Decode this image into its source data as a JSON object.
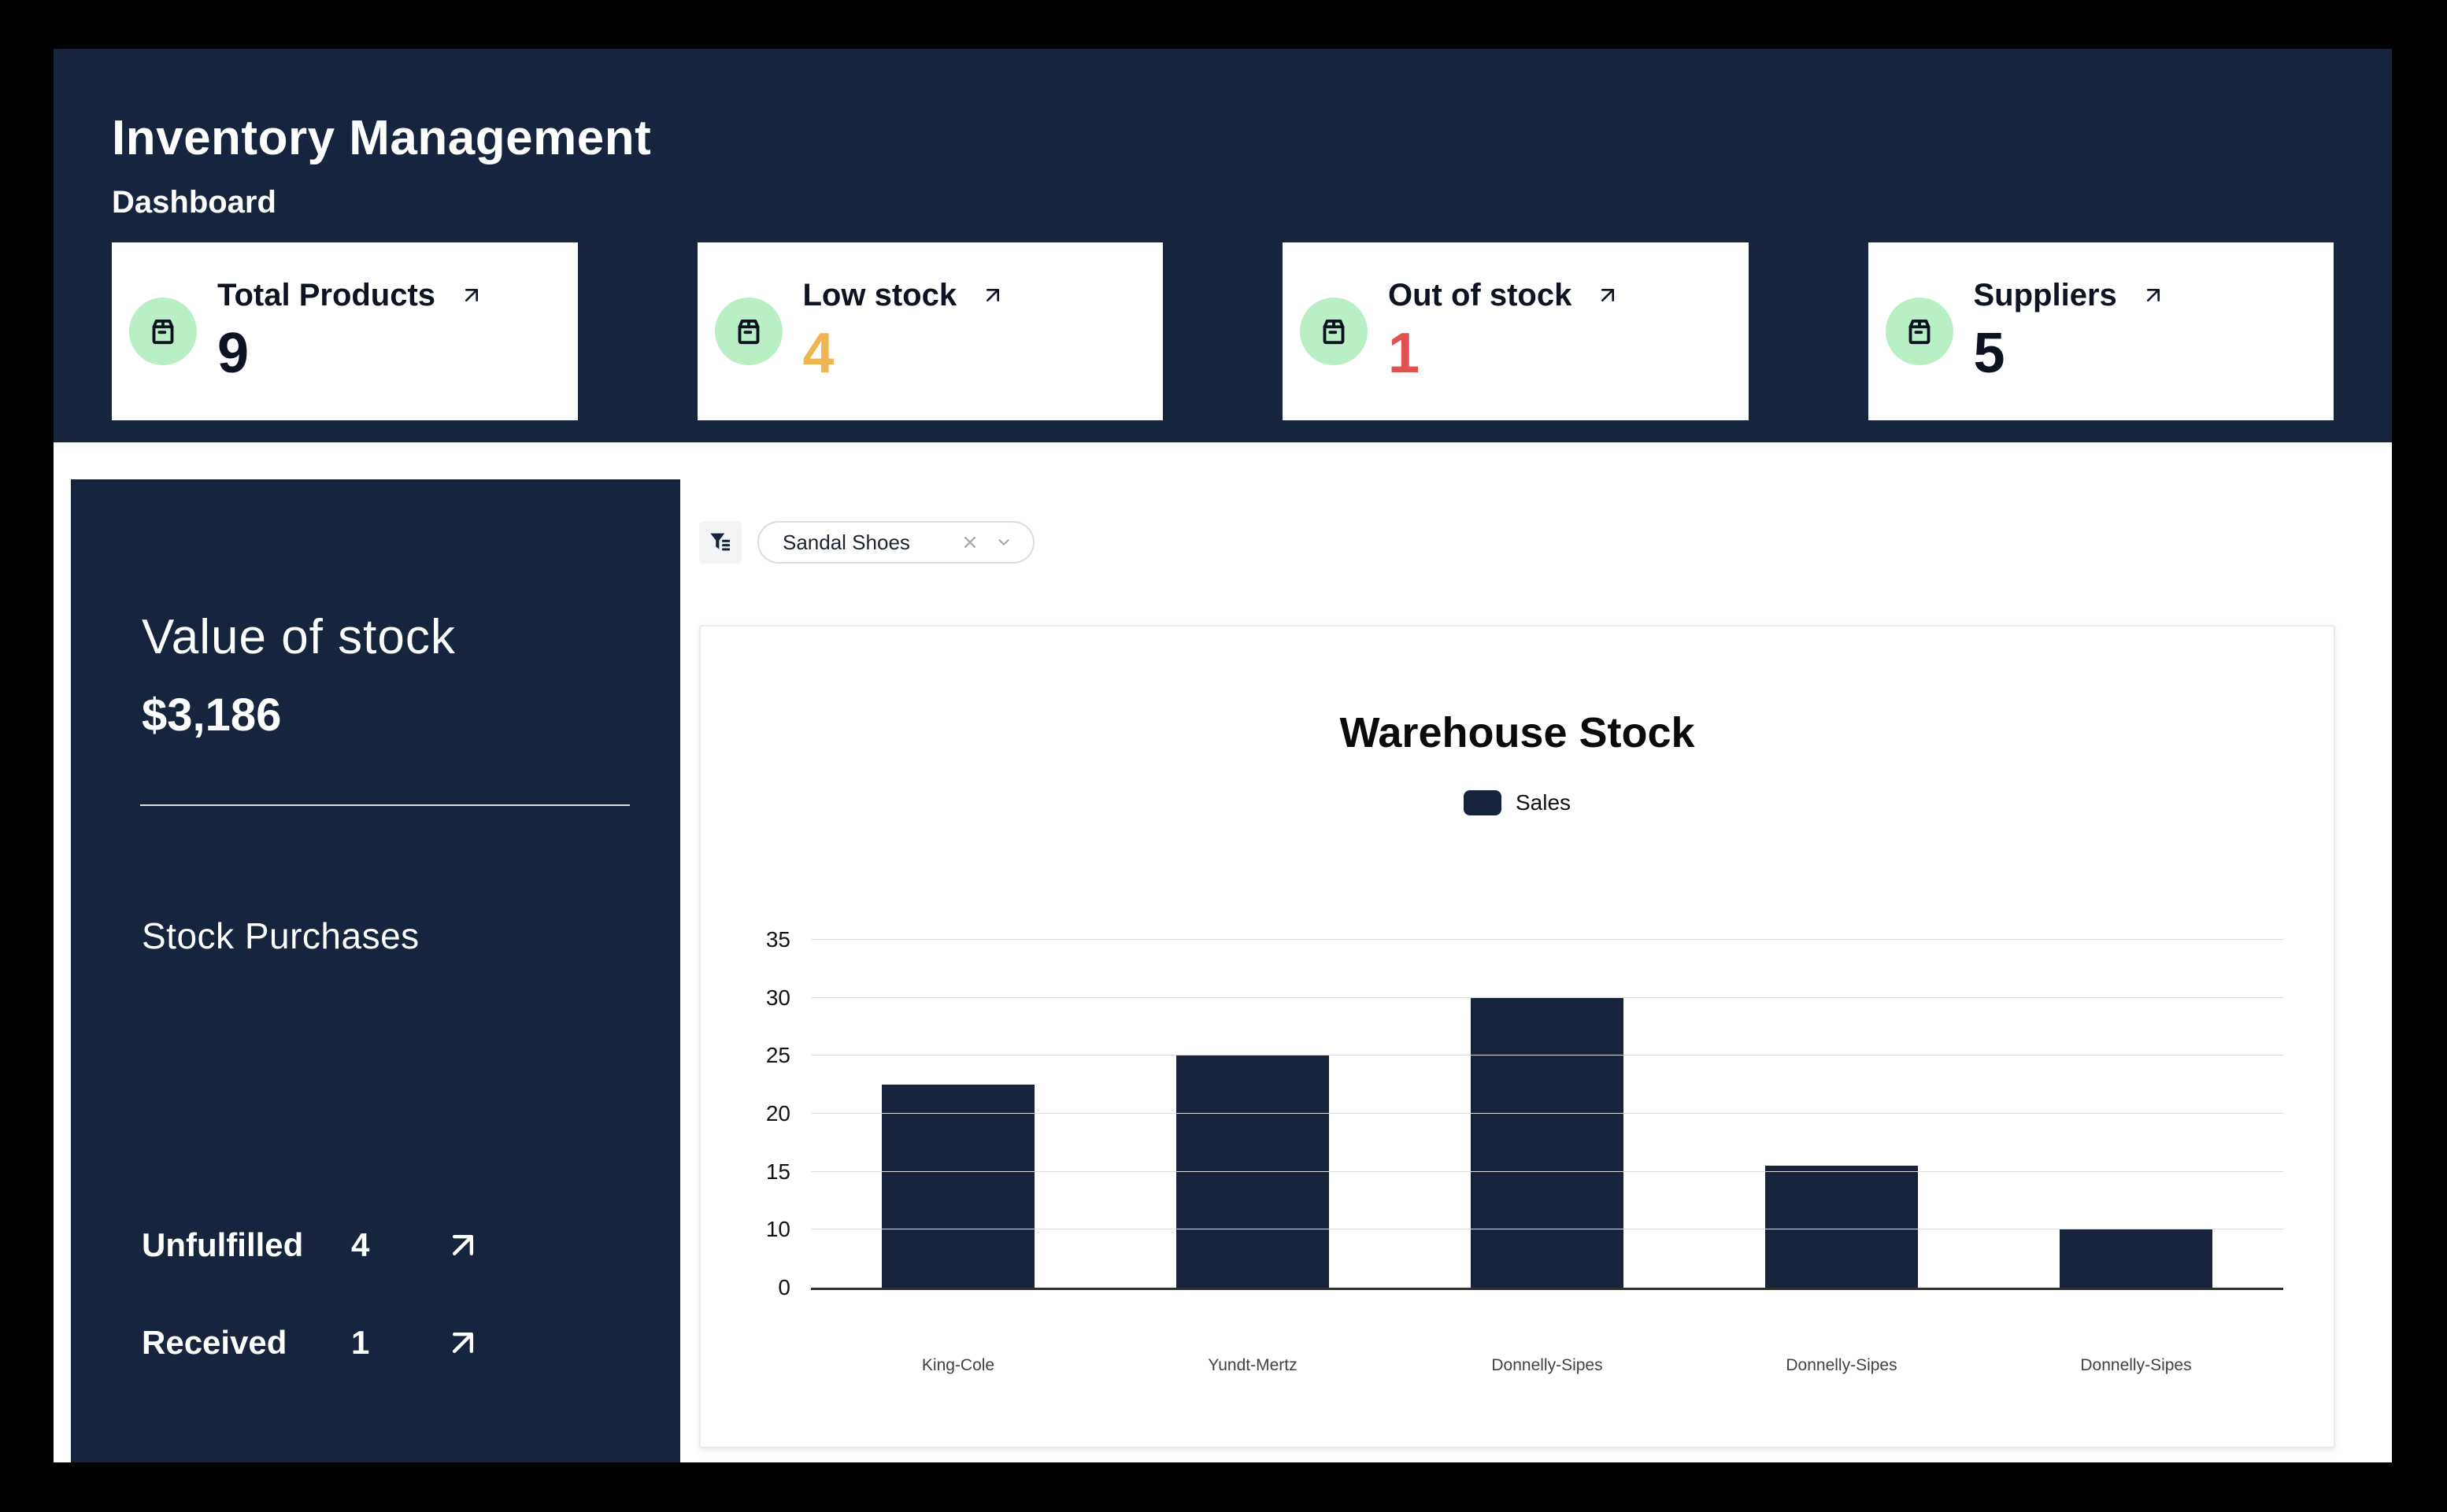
{
  "app": {
    "title": "Inventory Management",
    "subtitle": "Dashboard"
  },
  "stat_cards": [
    {
      "label": "Total Products",
      "value": "9",
      "value_color": "dark",
      "icon": "store-icon"
    },
    {
      "label": "Low stock",
      "value": "4",
      "value_color": "amber",
      "icon": "store-icon"
    },
    {
      "label": "Out of stock",
      "value": "1",
      "value_color": "red",
      "icon": "store-icon"
    },
    {
      "label": "Suppliers",
      "value": "5",
      "value_color": "dark",
      "icon": "store-icon"
    }
  ],
  "sidebar": {
    "stock_value_label": "Value of stock",
    "stock_value_amount": "$3,186",
    "purchases_title": "Stock Purchases",
    "purchase_rows": [
      {
        "label": "Unfulfilled",
        "value": "4"
      },
      {
        "label": "Received",
        "value": "1"
      }
    ]
  },
  "filter": {
    "selected_value": "Sandal Shoes"
  },
  "chart_data": {
    "type": "bar",
    "title": "Warehouse Stock",
    "legend": [
      {
        "name": "Sales",
        "color": "#16233B"
      }
    ],
    "legend_position": "top",
    "categories": [
      "King-Cole",
      "Yundt-Mertz",
      "Donnelly-Sipes",
      "Donnelly-Sipes",
      "Donnelly-Sipes"
    ],
    "series": [
      {
        "name": "Sales",
        "values": [
          22.5,
          25,
          30,
          15.5,
          10
        ]
      }
    ],
    "y_ticks": [
      0,
      10,
      15,
      20,
      25,
      30,
      35
    ],
    "ylim": [
      0,
      35
    ],
    "grid": true,
    "bar_color": "#16233B",
    "xlabel": "",
    "ylabel": ""
  },
  "colors": {
    "navy": "#16243E",
    "bar": "#16233B",
    "amber": "#F0B450",
    "red": "#E05151",
    "dark_text": "#0D1321",
    "green_badge": "#B9EFC5"
  }
}
